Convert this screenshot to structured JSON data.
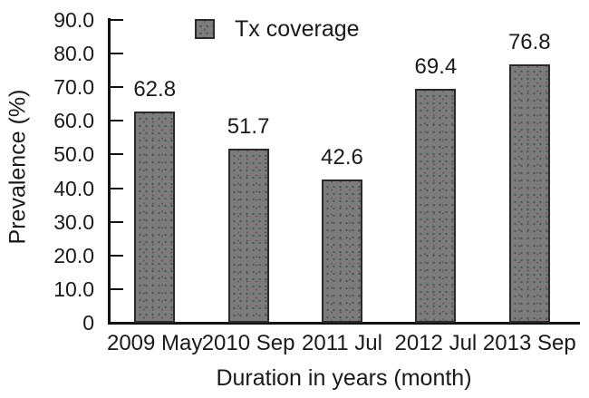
{
  "chart_data": {
    "type": "bar",
    "title": "",
    "categories": [
      "2009 May",
      "2010 Sep",
      "2011 Jul",
      "2012 Jul",
      "2013 Sep"
    ],
    "values": [
      62.8,
      51.7,
      42.6,
      69.4,
      76.8
    ],
    "value_labels": [
      "62.8",
      "51.7",
      "42.6",
      "69.4",
      "76.8"
    ],
    "series": [
      {
        "name": "Tx coverage",
        "values": [
          62.8,
          51.7,
          42.6,
          69.4,
          76.8
        ]
      }
    ],
    "legend": {
      "label": "Tx coverage",
      "position": "top-center"
    },
    "xlabel": "Duration in years (month)",
    "ylabel": "Prevalence (%)",
    "ylim": [
      0,
      90
    ],
    "ytick_values": [
      0,
      10,
      20,
      30,
      40,
      50,
      60,
      70,
      80,
      90
    ],
    "ytick_labels": [
      "0",
      "10.0",
      "20.0",
      "30.0",
      "40.0",
      "50.0",
      "60.0",
      "70.0",
      "80.0",
      "90.0"
    ],
    "grid": false,
    "colors": {
      "bar_fill": "#7c7c7c",
      "bar_border": "#2a2a2a",
      "axis": "#111111",
      "text": "#1a1a1a",
      "background": "#ffffff"
    }
  }
}
